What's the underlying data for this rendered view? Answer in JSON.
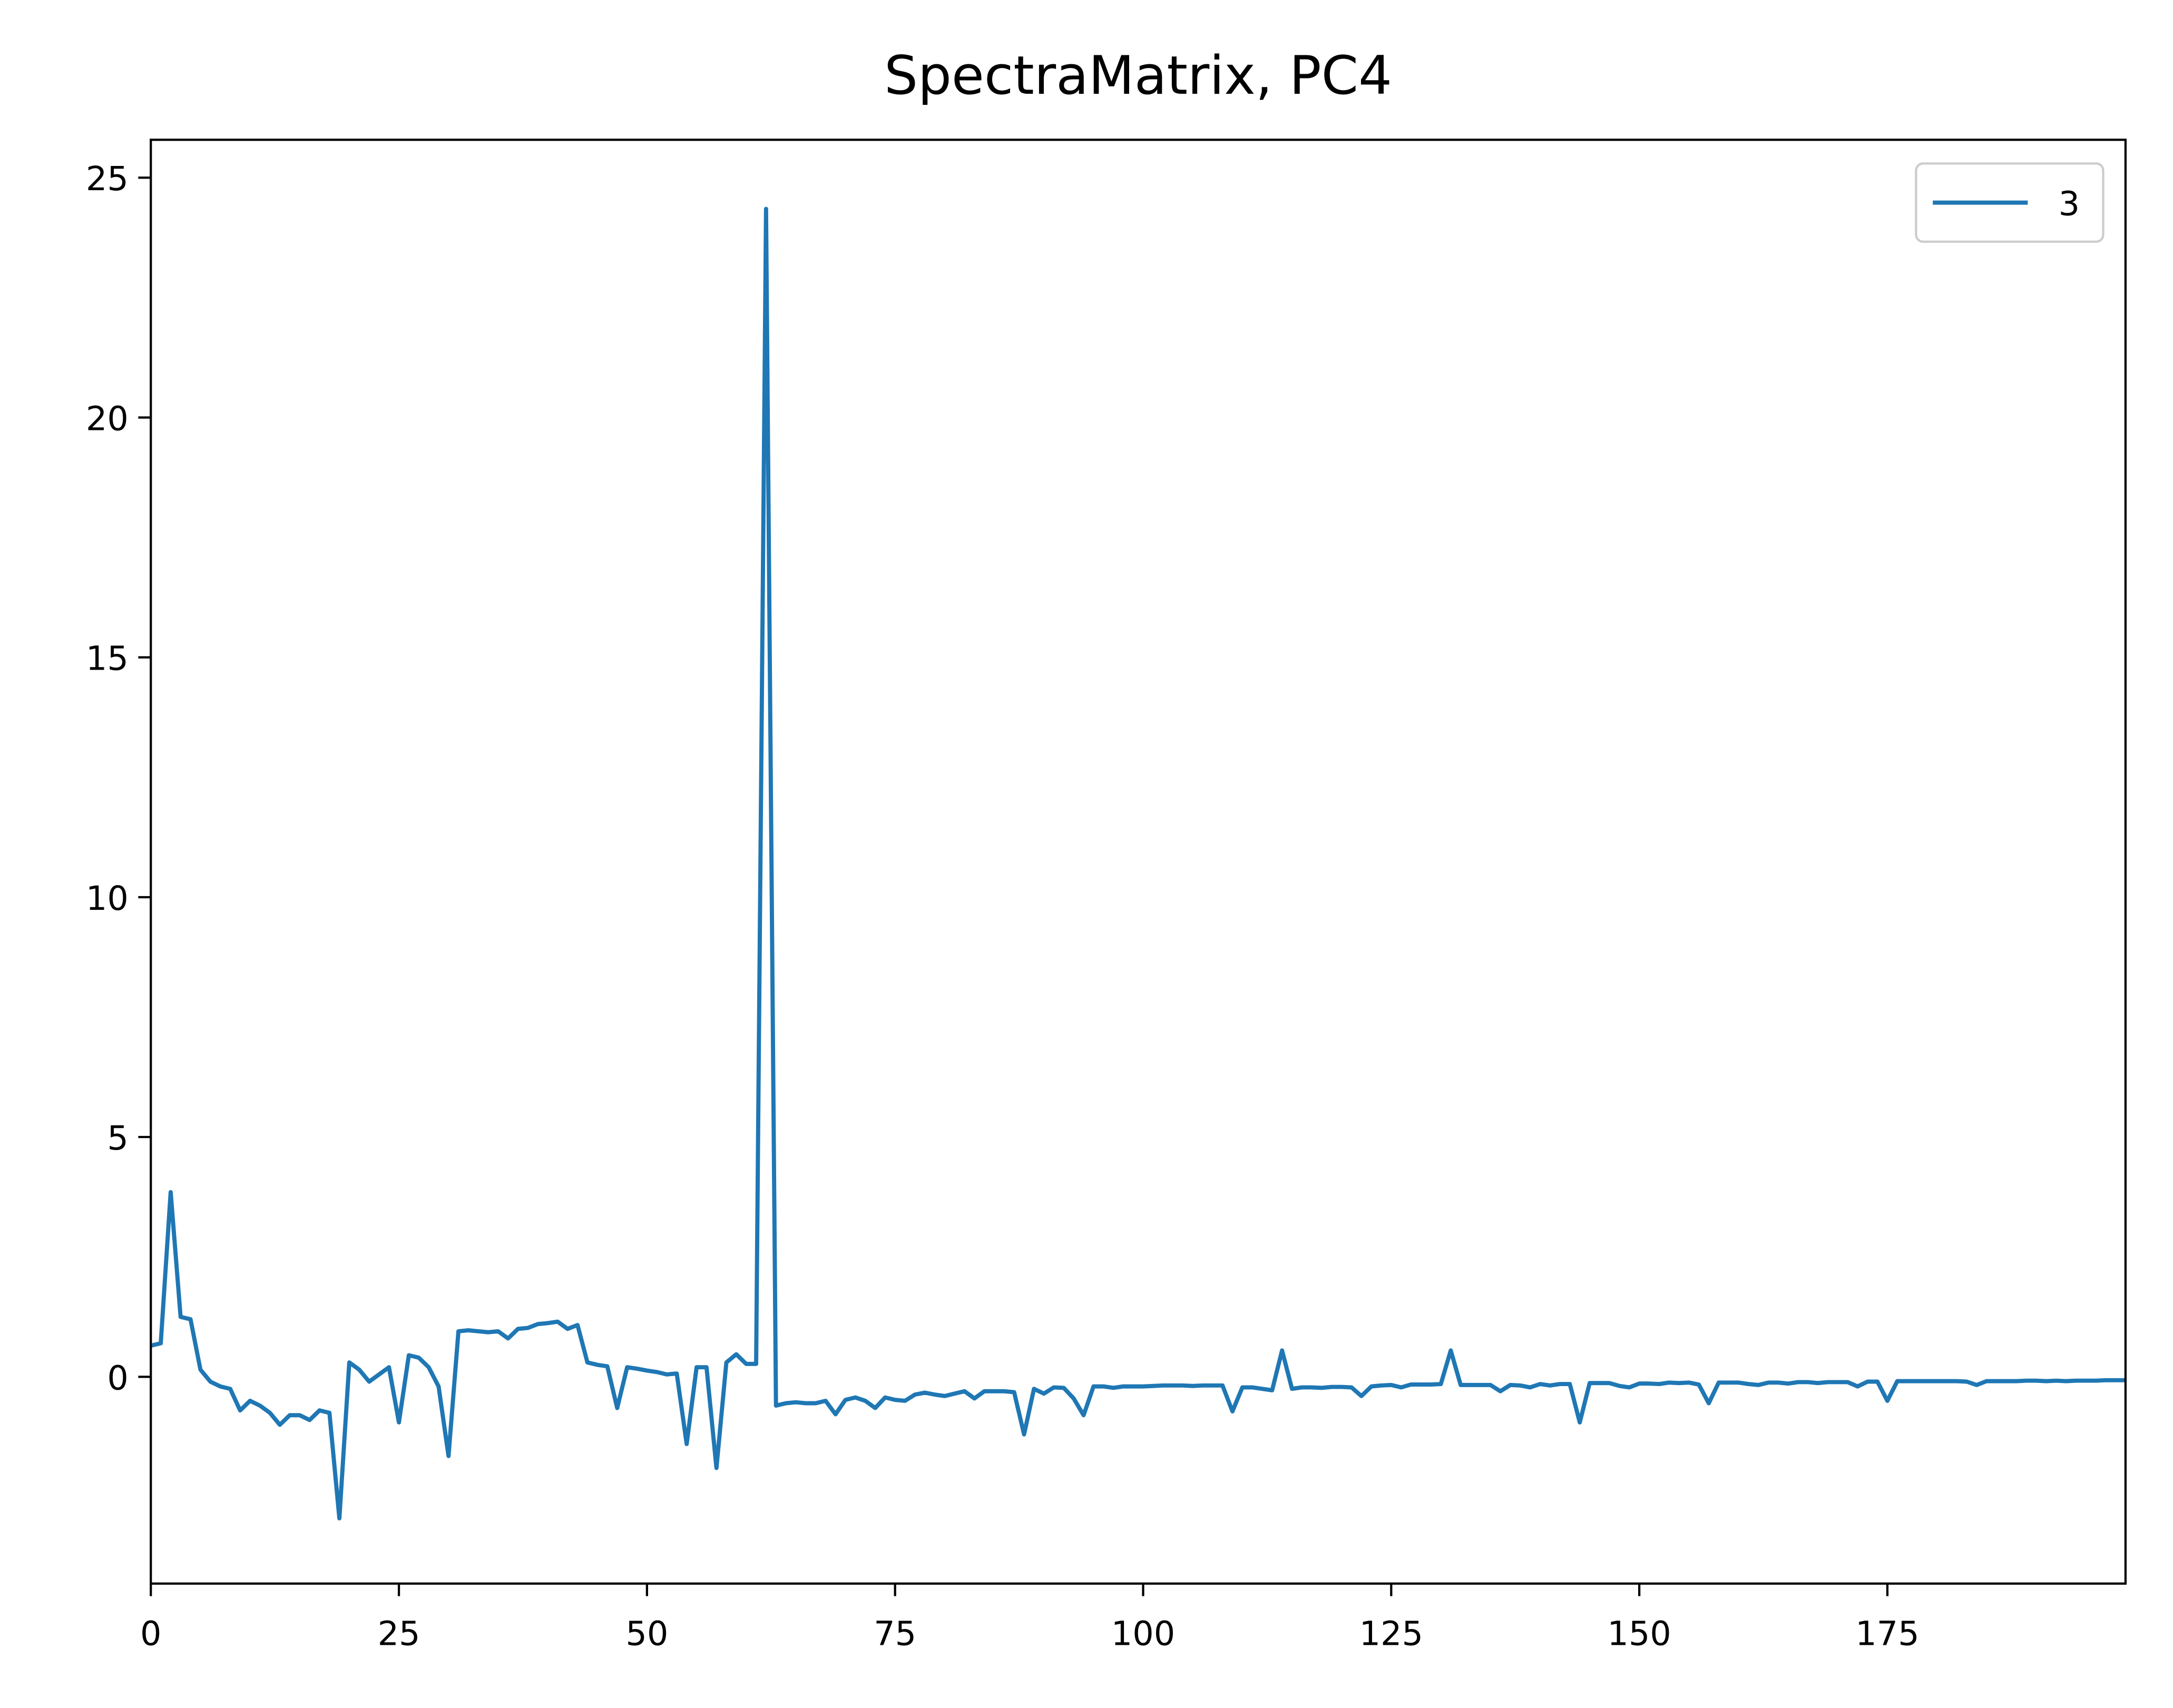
{
  "chart_data": {
    "type": "line",
    "title": "SpectraMatrix, PC4",
    "x": [
      0,
      1,
      2,
      3,
      4,
      5,
      6,
      7,
      8,
      9,
      10,
      11,
      12,
      13,
      14,
      15,
      16,
      17,
      18,
      19,
      20,
      21,
      22,
      23,
      24,
      25,
      26,
      27,
      28,
      29,
      30,
      31,
      32,
      33,
      34,
      35,
      36,
      37,
      38,
      39,
      40,
      41,
      42,
      43,
      44,
      45,
      46,
      47,
      48,
      49,
      50,
      51,
      52,
      53,
      54,
      55,
      56,
      57,
      58,
      59,
      60,
      61,
      62,
      63,
      64,
      65,
      66,
      67,
      68,
      69,
      70,
      71,
      72,
      73,
      74,
      75,
      76,
      77,
      78,
      79,
      80,
      81,
      82,
      83,
      84,
      85,
      86,
      87,
      88,
      89,
      90,
      91,
      92,
      93,
      94,
      95,
      96,
      97,
      98,
      99,
      100,
      101,
      102,
      103,
      104,
      105,
      106,
      107,
      108,
      109,
      110,
      111,
      112,
      113,
      114,
      115,
      116,
      117,
      118,
      119,
      120,
      121,
      122,
      123,
      124,
      125,
      126,
      127,
      128,
      129,
      130,
      131,
      132,
      133,
      134,
      135,
      136,
      137,
      138,
      139,
      140,
      141,
      142,
      143,
      144,
      145,
      146,
      147,
      148,
      149,
      150,
      151,
      152,
      153,
      154,
      155,
      156,
      157,
      158,
      159,
      160,
      161,
      162,
      163,
      164,
      165,
      166,
      167,
      168,
      169,
      170,
      171,
      172,
      173,
      174,
      175,
      176,
      177,
      178,
      179,
      180,
      181,
      182,
      183,
      184,
      185,
      186,
      187,
      188,
      189,
      190,
      191,
      192,
      193,
      194,
      195,
      196,
      197,
      198,
      199
    ],
    "series": [
      {
        "name": "3",
        "color": "#1f77b4",
        "values": [
          0.65,
          0.7,
          3.85,
          1.25,
          1.2,
          0.15,
          -0.1,
          -0.2,
          -0.25,
          -0.7,
          -0.5,
          -0.6,
          -0.75,
          -1.0,
          -0.8,
          -0.8,
          -0.9,
          -0.7,
          -0.75,
          -2.95,
          0.3,
          0.15,
          -0.1,
          0.05,
          0.2,
          -0.95,
          0.45,
          0.4,
          0.2,
          -0.2,
          -1.65,
          0.95,
          0.97,
          0.95,
          0.93,
          0.95,
          0.8,
          1.0,
          1.02,
          1.1,
          1.12,
          1.15,
          1.0,
          1.08,
          0.3,
          0.25,
          0.22,
          -0.65,
          0.2,
          0.17,
          0.13,
          0.1,
          0.05,
          0.07,
          -1.4,
          0.2,
          0.2,
          -1.9,
          0.3,
          0.47,
          0.27,
          0.27,
          24.35,
          -0.6,
          -0.55,
          -0.53,
          -0.55,
          -0.55,
          -0.5,
          -0.78,
          -0.48,
          -0.43,
          -0.5,
          -0.65,
          -0.43,
          -0.48,
          -0.5,
          -0.37,
          -0.33,
          -0.37,
          -0.4,
          -0.35,
          -0.3,
          -0.45,
          -0.3,
          -0.3,
          -0.3,
          -0.32,
          -1.2,
          -0.25,
          -0.35,
          -0.22,
          -0.23,
          -0.45,
          -0.8,
          -0.2,
          -0.2,
          -0.23,
          -0.2,
          -0.2,
          -0.2,
          -0.19,
          -0.18,
          -0.18,
          -0.18,
          -0.19,
          -0.18,
          -0.18,
          -0.18,
          -0.72,
          -0.22,
          -0.22,
          -0.25,
          -0.28,
          0.55,
          -0.25,
          -0.22,
          -0.22,
          -0.23,
          -0.21,
          -0.21,
          -0.22,
          -0.4,
          -0.2,
          -0.18,
          -0.17,
          -0.22,
          -0.16,
          -0.16,
          -0.16,
          -0.15,
          0.55,
          -0.17,
          -0.17,
          -0.17,
          -0.17,
          -0.3,
          -0.17,
          -0.18,
          -0.22,
          -0.15,
          -0.18,
          -0.15,
          -0.15,
          -0.95,
          -0.13,
          -0.13,
          -0.13,
          -0.19,
          -0.22,
          -0.14,
          -0.14,
          -0.15,
          -0.12,
          -0.13,
          -0.12,
          -0.16,
          -0.55,
          -0.12,
          -0.12,
          -0.12,
          -0.15,
          -0.17,
          -0.12,
          -0.12,
          -0.14,
          -0.11,
          -0.11,
          -0.13,
          -0.11,
          -0.11,
          -0.11,
          -0.2,
          -0.1,
          -0.1,
          -0.5,
          -0.09,
          -0.09,
          -0.09,
          -0.09,
          -0.09,
          -0.09,
          -0.09,
          -0.1,
          -0.17,
          -0.09,
          -0.09,
          -0.09,
          -0.09,
          -0.08,
          -0.08,
          -0.09,
          -0.08,
          -0.09,
          -0.08,
          -0.08,
          -0.08,
          -0.07,
          -0.07,
          -0.07
        ]
      }
    ],
    "xlim": [
      0,
      199
    ],
    "xticks": [
      0,
      25,
      50,
      75,
      100,
      125,
      150,
      175
    ],
    "ylim": [
      -4.31,
      25.79
    ],
    "yticks": [
      0,
      5,
      10,
      15,
      20,
      25
    ],
    "legend": "upper right"
  }
}
